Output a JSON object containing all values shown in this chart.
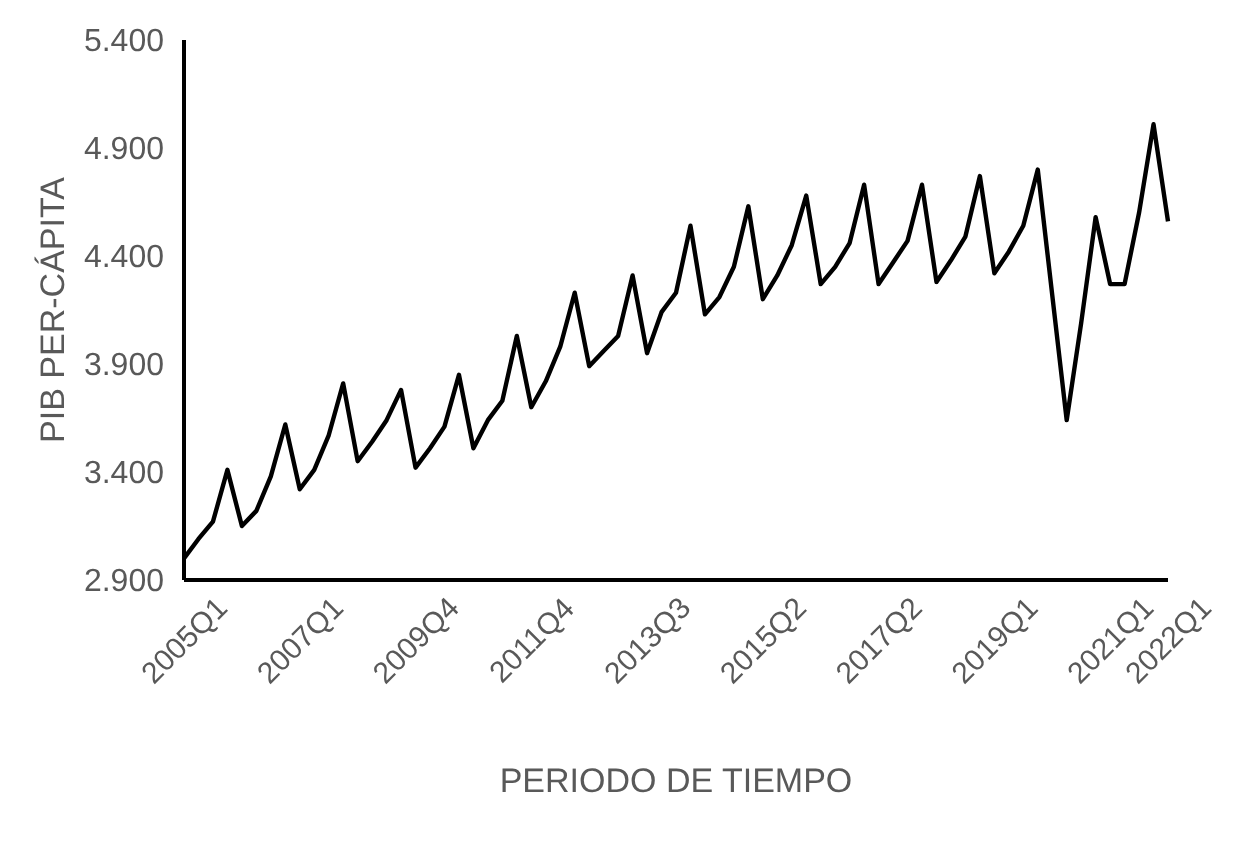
{
  "chart_data": {
    "type": "line",
    "xlabel": "PERIODO DE TIEMPO",
    "ylabel": "PIB PER-CÁPITA",
    "categories": [
      "2005Q1",
      null,
      null,
      null,
      null,
      null,
      null,
      null,
      "2007Q1",
      null,
      null,
      null,
      null,
      null,
      null,
      null,
      "2009Q4",
      null,
      null,
      null,
      null,
      null,
      null,
      null,
      "2011Q4",
      null,
      null,
      null,
      null,
      null,
      null,
      null,
      "2013Q3",
      null,
      null,
      null,
      null,
      null,
      null,
      null,
      "2015Q2",
      null,
      null,
      null,
      null,
      null,
      null,
      null,
      "2017Q2",
      null,
      null,
      null,
      null,
      null,
      null,
      null,
      "2019Q1",
      null,
      null,
      null,
      null,
      null,
      null,
      null,
      "2021Q1",
      null,
      null,
      null,
      "2022Q1"
    ],
    "series": [
      {
        "color": "#000000",
        "values": [
          3.0,
          3.09,
          3.17,
          3.41,
          3.15,
          3.22,
          3.38,
          3.62,
          3.32,
          3.41,
          3.57,
          3.81,
          3.45,
          3.54,
          3.64,
          3.78,
          3.42,
          3.51,
          3.61,
          3.85,
          3.51,
          3.64,
          3.73,
          4.03,
          3.7,
          3.82,
          3.98,
          4.23,
          3.89,
          3.96,
          4.03,
          4.31,
          3.95,
          4.14,
          4.23,
          4.54,
          4.13,
          4.21,
          4.35,
          4.63,
          4.2,
          4.31,
          4.45,
          4.68,
          4.27,
          4.35,
          4.46,
          4.73,
          4.27,
          4.37,
          4.47,
          4.73,
          4.28,
          4.38,
          4.49,
          4.77,
          4.32,
          4.42,
          4.54,
          4.8,
          4.22,
          3.64,
          4.09,
          4.58,
          4.27,
          4.27,
          4.6,
          5.01,
          4.56
        ]
      }
    ],
    "ylim": [
      2.9,
      5.4
    ],
    "yticks": [
      {
        "value": 2.9,
        "label": "2.900"
      },
      {
        "value": 3.4,
        "label": "3.400"
      },
      {
        "value": 3.9,
        "label": "3.900"
      },
      {
        "value": 4.4,
        "label": "4.400"
      },
      {
        "value": 4.9,
        "label": "4.900"
      },
      {
        "value": 5.4,
        "label": "5.400"
      }
    ],
    "grid": false,
    "marker": "none",
    "line_style": "solid"
  }
}
